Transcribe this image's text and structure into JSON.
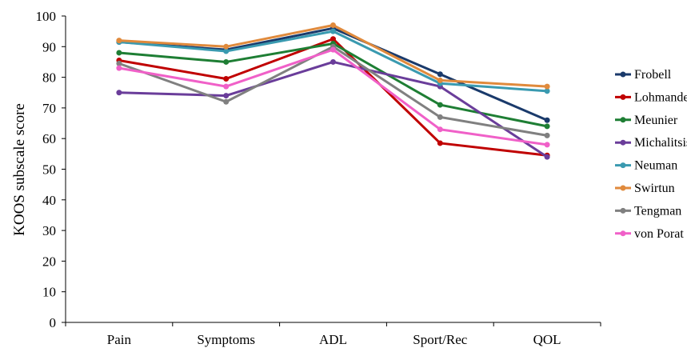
{
  "chart_data": {
    "type": "line",
    "title": "",
    "xlabel": "",
    "ylabel": "KOOS subscale score",
    "categories": [
      "Pain",
      "Symptoms",
      "ADL",
      "Sport/Rec",
      "QOL"
    ],
    "ylim": [
      0,
      100
    ],
    "yticks": [
      0,
      10,
      20,
      30,
      40,
      50,
      60,
      70,
      80,
      90,
      100
    ],
    "grid": false,
    "legend_position": "right",
    "series": [
      {
        "name": "Frobell",
        "color": "#1a3a6b",
        "values": [
          91.5,
          89.0,
          96.0,
          81.0,
          66.0
        ]
      },
      {
        "name": "Lohmander",
        "color": "#c00000",
        "values": [
          85.5,
          79.5,
          92.5,
          58.5,
          54.5
        ]
      },
      {
        "name": "Meunier",
        "color": "#1e7e34",
        "values": [
          88.0,
          85.0,
          91.0,
          71.0,
          64.0
        ]
      },
      {
        "name": "Michalitsis",
        "color": "#6a3d9a",
        "values": [
          75.0,
          74.0,
          85.0,
          77.0,
          54.0
        ]
      },
      {
        "name": "Neuman",
        "color": "#3a9ab0",
        "values": [
          91.5,
          88.5,
          95.0,
          78.0,
          75.5
        ]
      },
      {
        "name": "Swirtun",
        "color": "#e08a3c",
        "values": [
          92.0,
          90.0,
          97.0,
          79.0,
          77.0
        ]
      },
      {
        "name": "Tengman",
        "color": "#808080",
        "values": [
          84.5,
          72.0,
          90.0,
          67.0,
          61.0
        ]
      },
      {
        "name": "von Porat",
        "color": "#f060c8",
        "values": [
          83.0,
          77.0,
          89.0,
          63.0,
          58.0
        ]
      }
    ]
  }
}
